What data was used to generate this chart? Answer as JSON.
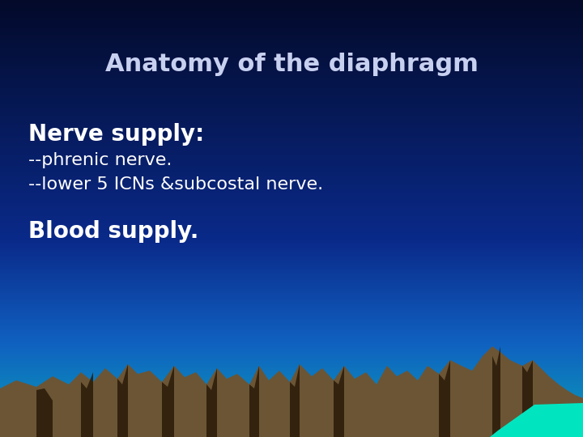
{
  "title": "Anatomy of the diaphragm",
  "title_fontsize": 22,
  "title_color": "#C8D0F0",
  "title_fontweight": "bold",
  "nerve_supply_label": "Nerve supply:",
  "nerve_supply_fontsize": 20,
  "nerve_supply_fontweight": "bold",
  "nerve_supply_color": "#FFFFFF",
  "bullet1": "--phrenic nerve.",
  "bullet2": "--lower 5 ICNs &subcostal nerve.",
  "bullet_fontsize": 16,
  "bullet_color": "#FFFFFF",
  "blood_supply_label": "Blood supply.",
  "blood_supply_fontsize": 20,
  "blood_supply_fontweight": "bold",
  "blood_supply_color": "#FFFFFF",
  "mountain_color": "#6B5535",
  "mountain_shadow_color": "#2A1A08",
  "water_color": "#00E5C0",
  "mountain_pts_x": [
    0,
    20,
    45,
    65,
    85,
    100,
    115,
    130,
    145,
    158,
    170,
    185,
    200,
    215,
    228,
    242,
    255,
    268,
    280,
    293,
    308,
    320,
    332,
    345,
    358,
    370,
    385,
    398,
    412,
    425,
    438,
    452,
    465,
    478,
    490,
    503,
    516,
    528,
    542,
    556,
    570,
    583,
    596,
    608,
    618,
    630,
    645,
    658,
    668,
    678,
    690,
    700,
    710,
    720
  ],
  "mountain_pts_y": [
    60,
    70,
    62,
    75,
    65,
    80,
    68,
    85,
    72,
    90,
    78,
    82,
    68,
    88,
    74,
    80,
    65,
    85,
    72,
    78,
    65,
    88,
    70,
    82,
    68,
    90,
    75,
    85,
    70,
    88,
    72,
    80,
    65,
    88,
    75,
    82,
    70,
    88,
    78,
    95,
    88,
    82,
    100,
    112,
    105,
    95,
    88,
    95,
    85,
    75,
    65,
    58,
    52,
    48
  ],
  "shadow_segs": [
    [
      45,
      65,
      58,
      45,
      60
    ],
    [
      100,
      115,
      68,
      80,
      60
    ],
    [
      145,
      158,
      72,
      90,
      65
    ],
    [
      200,
      215,
      68,
      88,
      62
    ],
    [
      255,
      268,
      65,
      85,
      58
    ],
    [
      308,
      320,
      65,
      88,
      60
    ],
    [
      358,
      370,
      68,
      90,
      62
    ],
    [
      412,
      425,
      70,
      88,
      65
    ],
    [
      542,
      556,
      78,
      95,
      70
    ],
    [
      608,
      618,
      100,
      112,
      88
    ],
    [
      645,
      658,
      88,
      95,
      80
    ]
  ]
}
